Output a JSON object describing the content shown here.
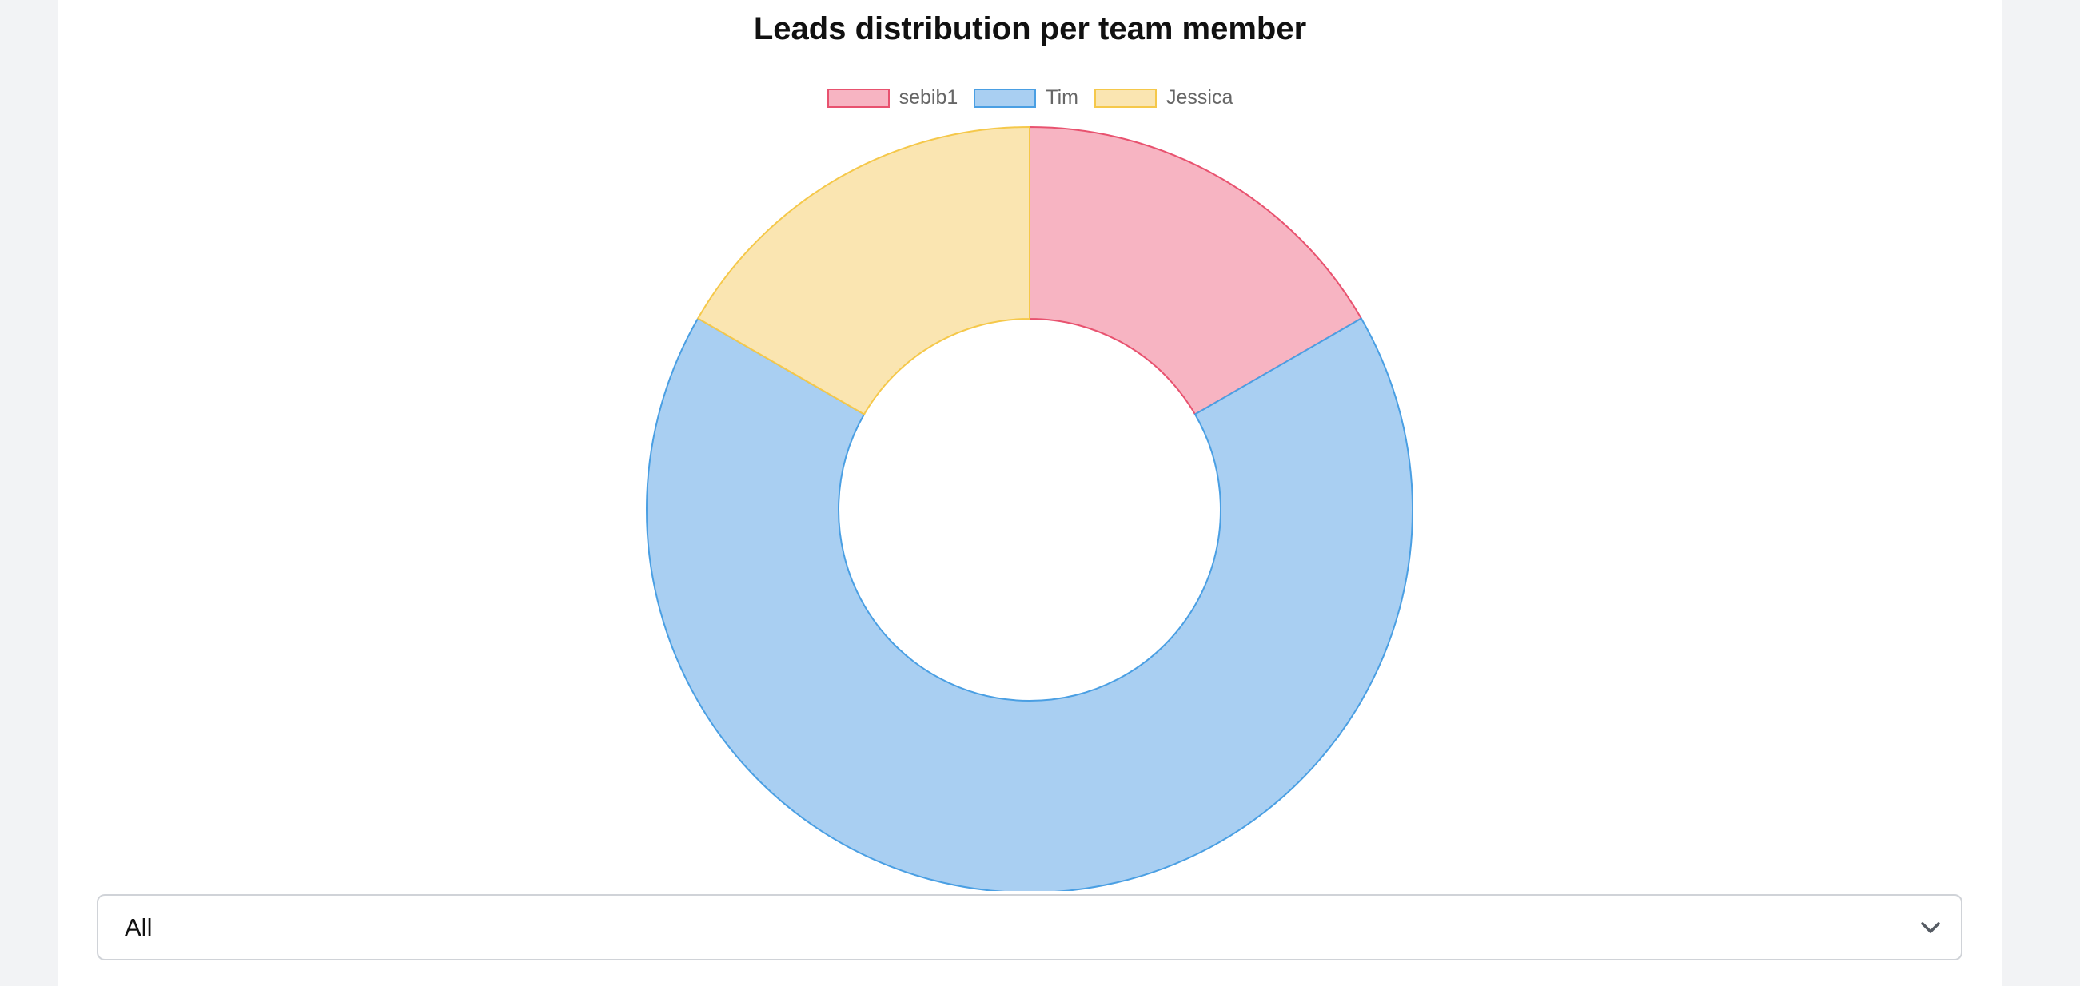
{
  "chart_data": {
    "type": "doughnut",
    "title": "Leads distribution per team member",
    "legend_position": "top",
    "series": [
      {
        "name": "sebib1",
        "value": 1,
        "fill": "#f7b4c2",
        "stroke": "#e8526f"
      },
      {
        "name": "Tim",
        "value": 4,
        "fill": "#a9cff2",
        "stroke": "#4a9fe3"
      },
      {
        "name": "Jessica",
        "value": 1,
        "fill": "#fae5b1",
        "stroke": "#f5c84a"
      }
    ]
  },
  "filter": {
    "selected": "All",
    "icon": "chevron-down-icon"
  }
}
